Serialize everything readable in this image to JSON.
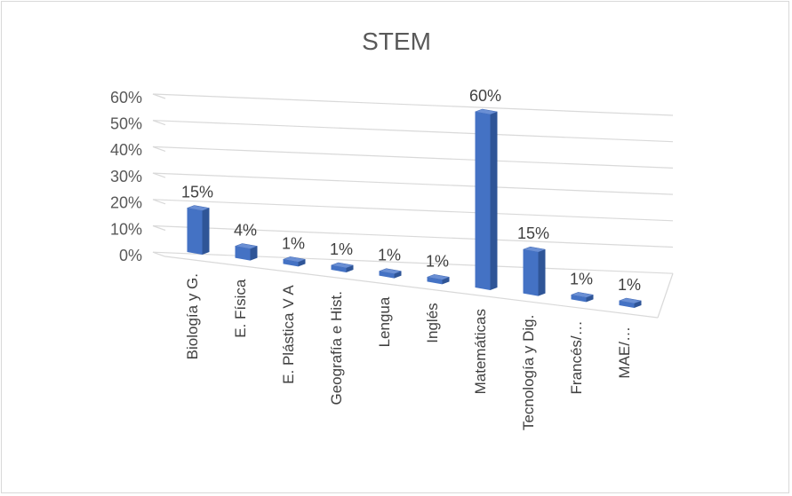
{
  "chart_data": {
    "type": "bar",
    "title": "STEM",
    "categories": [
      "Biología y G.",
      "E. Física",
      "E. Plástica V A",
      "Geografía e Hist.",
      "Lengua",
      "Inglés",
      "Matemáticas",
      "Tecnología y Dig.",
      "Francés/…",
      "MAE/…"
    ],
    "values": [
      15,
      4,
      1,
      1,
      1,
      1,
      60,
      15,
      1,
      1
    ],
    "data_labels": [
      "15%",
      "4%",
      "1%",
      "1%",
      "1%",
      "1%",
      "60%",
      "15%",
      "1%",
      "1%"
    ],
    "y_ticks": [
      "0%",
      "10%",
      "20%",
      "30%",
      "40%",
      "50%",
      "60%"
    ],
    "ylim": [
      0,
      60
    ],
    "grid": true,
    "style": "3d-clustered-column",
    "bar_color": "#4472c4",
    "xlabel": "",
    "ylabel": ""
  }
}
